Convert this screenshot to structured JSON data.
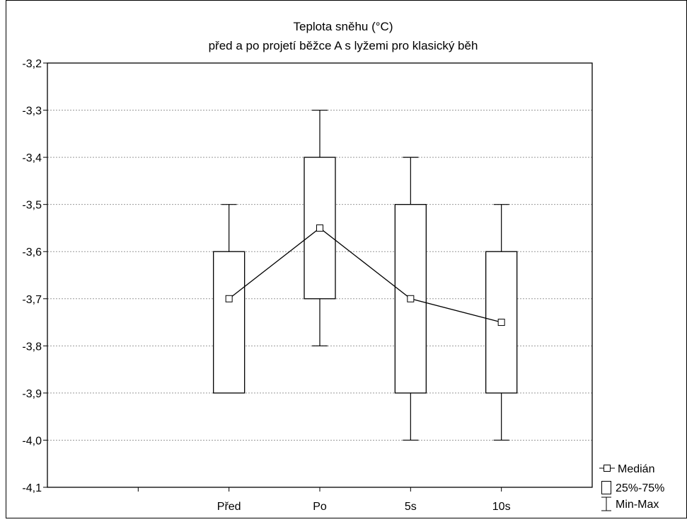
{
  "chart_data": {
    "type": "boxplot",
    "title_line1": "Teplota sněhu (°C)",
    "title_line2": "před a po projetí běžce A s lyžemi pro klasický běh",
    "xlabel": "",
    "ylabel": "",
    "ylim": [
      -4.1,
      -3.2
    ],
    "yticks": [
      {
        "value": -3.2,
        "label": "-3,2"
      },
      {
        "value": -3.3,
        "label": "-3,3"
      },
      {
        "value": -3.4,
        "label": "-3,4"
      },
      {
        "value": -3.5,
        "label": "-3,5"
      },
      {
        "value": -3.6,
        "label": "-3,6"
      },
      {
        "value": -3.7,
        "label": "-3,7"
      },
      {
        "value": -3.8,
        "label": "-3,8"
      },
      {
        "value": -3.9,
        "label": "-3,9"
      },
      {
        "value": -4.0,
        "label": "-4,0"
      },
      {
        "value": -4.1,
        "label": "-4,1"
      }
    ],
    "grid": "horizontal dotted",
    "categories": [
      "Před",
      "Po",
      "5s",
      "10s"
    ],
    "series": [
      {
        "name": "Medián",
        "values": [
          -3.7,
          -3.55,
          -3.7,
          -3.75
        ]
      },
      {
        "name": "25%-75%",
        "values": [
          [
            -3.9,
            -3.6
          ],
          [
            -3.7,
            -3.4
          ],
          [
            -3.9,
            -3.5
          ],
          [
            -3.9,
            -3.6
          ]
        ]
      },
      {
        "name": "Min-Max",
        "values": [
          [
            -3.9,
            -3.5
          ],
          [
            -3.8,
            -3.3
          ],
          [
            -4.0,
            -3.4
          ],
          [
            -4.0,
            -3.5
          ]
        ]
      }
    ],
    "legend": {
      "placement": "bottom-right",
      "items": [
        {
          "symbol": "median-marker",
          "label": "Medián"
        },
        {
          "symbol": "box",
          "label": "25%-75%"
        },
        {
          "symbol": "whisker",
          "label": "Min-Max"
        }
      ]
    },
    "colors": {
      "line": "#000000",
      "grid": "#999999",
      "background": "#ffffff"
    }
  }
}
